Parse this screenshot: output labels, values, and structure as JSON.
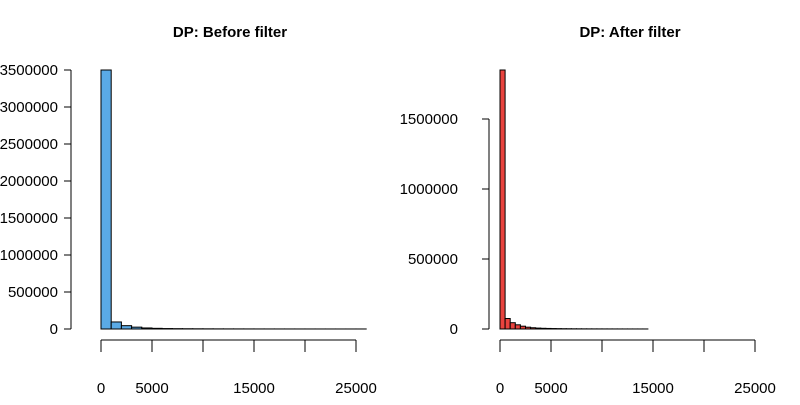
{
  "chart_data": [
    {
      "type": "bar",
      "title": "DP: Before filter",
      "xlabel": "",
      "ylabel": "",
      "bar_color": "#5aaae6",
      "bin_width": 1000,
      "x_start": 0,
      "xlim": [
        0,
        25000
      ],
      "ylim": [
        0,
        3500000
      ],
      "x_ticks": [
        0,
        5000,
        10000,
        15000,
        20000,
        25000
      ],
      "x_tick_labels": [
        "0",
        "5000",
        "",
        "15000",
        "",
        "25000"
      ],
      "y_ticks": [
        0,
        500000,
        1000000,
        1500000,
        2000000,
        2500000,
        3000000,
        3500000
      ],
      "y_tick_labels": [
        "0",
        "500000",
        "1000000",
        "1500000",
        "2000000",
        "2500000",
        "3000000",
        "3500000"
      ],
      "values": [
        3500000,
        95000,
        45000,
        25000,
        14000,
        9000,
        6000,
        4500,
        3500,
        2800,
        2300,
        1900,
        1600,
        1400,
        1200,
        1050,
        950,
        850,
        780,
        700,
        640,
        590,
        540,
        500,
        460,
        430
      ]
    },
    {
      "type": "bar",
      "title": "DP: After filter",
      "xlabel": "",
      "ylabel": "",
      "bar_color": "#e8433e",
      "bin_width": 500,
      "x_start": 0,
      "xlim": [
        0,
        25000
      ],
      "ylim": [
        0,
        1500000
      ],
      "x_ticks": [
        0,
        5000,
        10000,
        15000,
        20000,
        25000
      ],
      "x_tick_labels": [
        "0",
        "5000",
        "",
        "15000",
        "",
        "25000"
      ],
      "y_ticks": [
        0,
        500000,
        1000000,
        1500000
      ],
      "y_tick_labels": [
        "0",
        "500000",
        "1000000",
        "1500000"
      ],
      "values": [
        1850000,
        75000,
        45000,
        30000,
        20000,
        13000,
        9000,
        6500,
        5000,
        4000,
        3200,
        2600,
        2100,
        1800,
        1500,
        1300,
        1100,
        950,
        850,
        750,
        670,
        600,
        540,
        490,
        440,
        400,
        360,
        330,
        300
      ]
    }
  ]
}
